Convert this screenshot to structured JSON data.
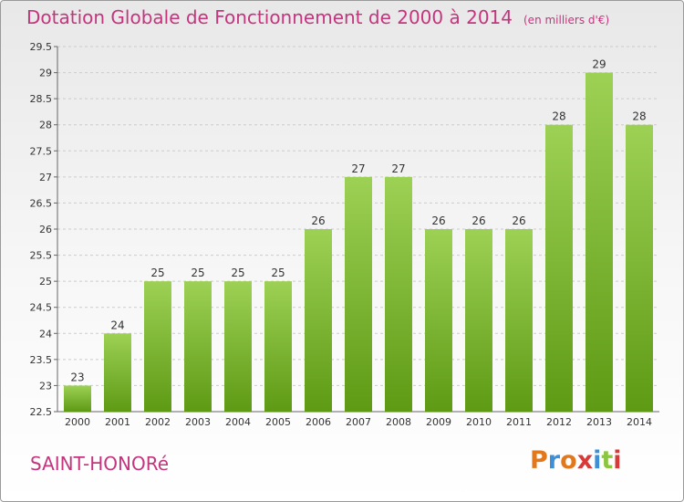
{
  "header": {
    "title": "Dotation Globale de Fonctionnement de 2000 à 2014",
    "unit": "(en milliers d'€)"
  },
  "footer": {
    "commune": "SAINT-HONORé",
    "logo_text": "Proxiti"
  },
  "colors": {
    "title": "#c4357e",
    "bar_light": "#9dd155",
    "bar_dark": "#5e9a14",
    "grid": "#cccccc"
  },
  "chart_data": {
    "type": "bar",
    "categories": [
      "2000",
      "2001",
      "2002",
      "2003",
      "2004",
      "2005",
      "2006",
      "2007",
      "2008",
      "2009",
      "2010",
      "2011",
      "2012",
      "2013",
      "2014"
    ],
    "values": [
      23,
      24,
      25,
      25,
      25,
      25,
      26,
      27,
      27,
      26,
      26,
      26,
      28,
      29,
      28
    ],
    "value_labels": [
      "23",
      "24",
      "25",
      "25",
      "25",
      "25",
      "26",
      "27",
      "27",
      "26",
      "26",
      "26",
      "28",
      "29",
      "28"
    ],
    "ylim": [
      22.5,
      29.5
    ],
    "yticks": [
      22.5,
      23,
      23.5,
      24,
      24.5,
      25,
      25.5,
      26,
      26.5,
      27,
      27.5,
      28,
      28.5,
      29,
      29.5
    ],
    "ytick_labels": [
      "22.5",
      "23",
      "23.5",
      "24",
      "24.5",
      "25",
      "25.5",
      "26",
      "26.5",
      "27",
      "27.5",
      "28",
      "28.5",
      "29",
      "29.5"
    ],
    "grid": true
  }
}
